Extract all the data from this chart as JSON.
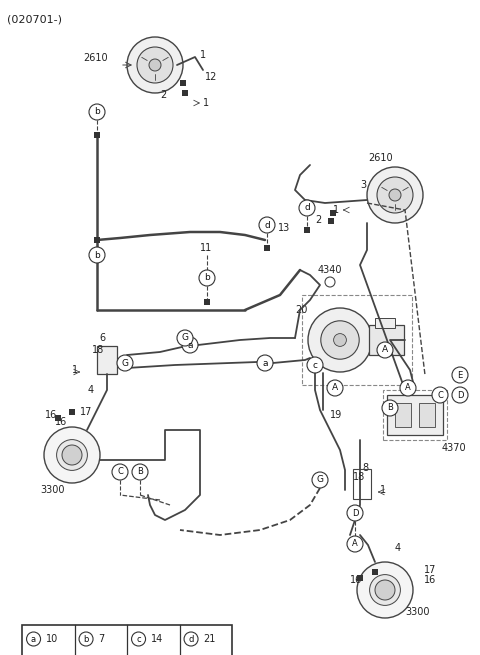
{
  "title": "(020701-)",
  "bg": "#ffffff",
  "lc": "#444444",
  "tc": "#222222",
  "figsize": [
    4.8,
    6.55
  ],
  "dpi": 100,
  "legend": [
    {
      "label": "a",
      "num": "10"
    },
    {
      "label": "b",
      "num": "7"
    },
    {
      "label": "c",
      "num": "14"
    },
    {
      "label": "d",
      "num": "21"
    }
  ]
}
